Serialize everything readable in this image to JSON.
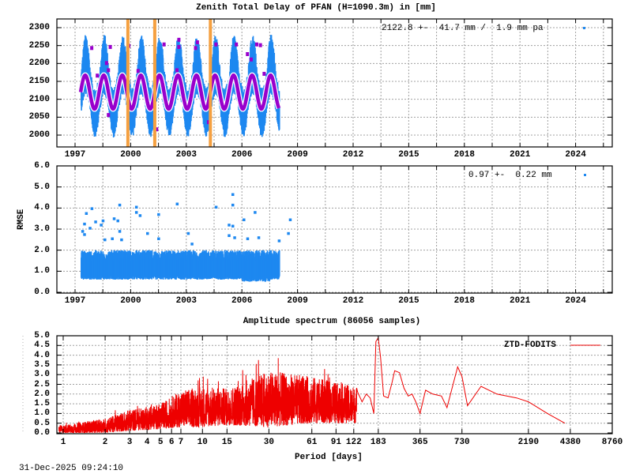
{
  "page": {
    "timestamp": "31-Dec-2025 09:24:10"
  },
  "colors": {
    "ztd_points": "#1e88f0",
    "ztd_model": "#9900cc",
    "ztd_outliers": "#9900cc",
    "discontinuity": "#f5a040",
    "rmse_points": "#1e88f0",
    "spectrum_line": "#ee0000",
    "grid": "#a0a0a0",
    "frame": "#000000"
  },
  "chart_data": [
    {
      "id": "ztd",
      "type": "scatter",
      "title": "Zenith Total Delay of PFAN (H=1090.3m) in [mm]",
      "xlabel": "",
      "ylabel": "",
      "xlim": [
        1996.0,
        2026.0
      ],
      "ylim": [
        1975,
        2325
      ],
      "xticks": [
        "1997",
        "2000",
        "2003",
        "2006",
        "2009",
        "2012",
        "2015",
        "2018",
        "2021",
        "2024"
      ],
      "yticks": [
        "2000",
        "2050",
        "2100",
        "2150",
        "2200",
        "2250",
        "2300"
      ],
      "grid": true,
      "legend": {
        "text": "2122.8 +-  41.7 mm /  1.9 mm pa",
        "position": "top-right"
      },
      "data_range": [
        1997.3,
        2008.0
      ],
      "mean_mm": 2122.8,
      "std_mm": 41.7,
      "trend_mm_per_year": 1.9,
      "seasonal_model": {
        "center": 2120,
        "amplitude": 47,
        "period_years": 1.0
      },
      "envelope": {
        "upper_peak_approx": 2245,
        "lower_trough_approx": 2025
      },
      "discontinuities_year": [
        1999.85,
        2001.3,
        2004.3
      ],
      "outliers": [
        {
          "x": 1997.9,
          "y": 2242
        },
        {
          "x": 1998.9,
          "y": 2245
        },
        {
          "x": 1998.7,
          "y": 2200
        },
        {
          "x": 1998.8,
          "y": 2180
        },
        {
          "x": 1998.8,
          "y": 2055
        },
        {
          "x": 1998.2,
          "y": 2165
        },
        {
          "x": 1999.9,
          "y": 2248
        },
        {
          "x": 2000.4,
          "y": 2178
        },
        {
          "x": 2001.8,
          "y": 2252
        },
        {
          "x": 2002.5,
          "y": 2180
        },
        {
          "x": 2002.6,
          "y": 2265
        },
        {
          "x": 2002.6,
          "y": 2245
        },
        {
          "x": 2003.6,
          "y": 2258
        },
        {
          "x": 2003.5,
          "y": 2242
        },
        {
          "x": 2004.2,
          "y": 2035
        },
        {
          "x": 2004.6,
          "y": 2252
        },
        {
          "x": 2005.7,
          "y": 2252
        },
        {
          "x": 2006.8,
          "y": 2252
        },
        {
          "x": 2007.0,
          "y": 2250
        },
        {
          "x": 2006.3,
          "y": 2225
        },
        {
          "x": 2006.5,
          "y": 2210
        },
        {
          "x": 2007.2,
          "y": 2170
        },
        {
          "x": 2001.4,
          "y": 2015
        }
      ]
    },
    {
      "id": "rmse",
      "type": "scatter",
      "title": "",
      "xlabel": "",
      "ylabel": "RMSE",
      "xlim": [
        1996.0,
        2026.0
      ],
      "ylim": [
        0.0,
        6.0
      ],
      "xticks": [
        "1997",
        "2000",
        "2003",
        "2006",
        "2009",
        "2012",
        "2015",
        "2018",
        "2021",
        "2024"
      ],
      "yticks": [
        "0.0",
        "1.0",
        "2.0",
        "3.0",
        "4.0",
        "5.0",
        "6.0"
      ],
      "grid": true,
      "legend": {
        "text": "0.97 +-  0.22 mm",
        "position": "top-right"
      },
      "mean_mm": 0.97,
      "std_mm": 0.22,
      "band": {
        "low": 0.6,
        "high": 1.9
      },
      "outliers": [
        {
          "x": 1997.4,
          "y": 2.9
        },
        {
          "x": 1997.6,
          "y": 3.75
        },
        {
          "x": 1997.5,
          "y": 3.25
        },
        {
          "x": 1997.5,
          "y": 2.75
        },
        {
          "x": 1997.8,
          "y": 3.05
        },
        {
          "x": 1997.9,
          "y": 3.98
        },
        {
          "x": 1998.1,
          "y": 3.35
        },
        {
          "x": 1998.4,
          "y": 3.2
        },
        {
          "x": 1998.5,
          "y": 3.4
        },
        {
          "x": 1998.6,
          "y": 2.5
        },
        {
          "x": 1999.0,
          "y": 2.55
        },
        {
          "x": 1999.1,
          "y": 3.5
        },
        {
          "x": 1999.3,
          "y": 3.4
        },
        {
          "x": 1999.4,
          "y": 4.15
        },
        {
          "x": 1999.4,
          "y": 2.9
        },
        {
          "x": 1999.5,
          "y": 2.5
        },
        {
          "x": 2000.3,
          "y": 4.05
        },
        {
          "x": 2000.3,
          "y": 3.8
        },
        {
          "x": 2000.5,
          "y": 3.65
        },
        {
          "x": 2000.9,
          "y": 2.8
        },
        {
          "x": 2001.5,
          "y": 3.7
        },
        {
          "x": 2001.5,
          "y": 2.55
        },
        {
          "x": 2002.5,
          "y": 4.2
        },
        {
          "x": 2003.1,
          "y": 2.8
        },
        {
          "x": 2003.3,
          "y": 2.3
        },
        {
          "x": 2004.6,
          "y": 4.05
        },
        {
          "x": 2005.3,
          "y": 3.2
        },
        {
          "x": 2005.3,
          "y": 2.7
        },
        {
          "x": 2005.5,
          "y": 3.15
        },
        {
          "x": 2005.5,
          "y": 4.65
        },
        {
          "x": 2005.5,
          "y": 4.15
        },
        {
          "x": 2005.6,
          "y": 2.6
        },
        {
          "x": 2006.1,
          "y": 3.45
        },
        {
          "x": 2006.3,
          "y": 2.55
        },
        {
          "x": 2006.7,
          "y": 3.8
        },
        {
          "x": 2006.9,
          "y": 2.6
        },
        {
          "x": 2008.0,
          "y": 2.45
        },
        {
          "x": 2008.5,
          "y": 2.8
        },
        {
          "x": 2008.6,
          "y": 3.45
        }
      ]
    },
    {
      "id": "spectrum",
      "type": "line",
      "title": "Amplitude spectrum (86056 samples)",
      "xlabel": "Period [days]",
      "ylabel": "",
      "xscale": "log",
      "xlim": [
        0.9,
        8760
      ],
      "ylim": [
        0.0,
        5.0
      ],
      "xticks": [
        "1",
        "2",
        "3",
        "4",
        "5",
        "6",
        "7",
        "10",
        "15",
        "30",
        "61",
        "91",
        "122",
        "183",
        "365",
        "730",
        "2190",
        "4380",
        "8760"
      ],
      "xtick_values": [
        1,
        2,
        3,
        4,
        5,
        6,
        7,
        10,
        15,
        30,
        61,
        91,
        122,
        183,
        365,
        730,
        2190,
        4380,
        8760
      ],
      "yticks": [
        "0.0",
        "0.5",
        "1.0",
        "1.5",
        "2.0",
        "2.5",
        "3.0",
        "3.5",
        "4.0",
        "4.5",
        "5.0"
      ],
      "grid": true,
      "legend": {
        "text": "ZTD-FODITS",
        "position": "top-right"
      },
      "samples": 86056,
      "series": [
        {
          "name": "ZTD-FODITS",
          "envelope_by_period": [
            {
              "period": 1,
              "low": 0.0,
              "high": 0.4
            },
            {
              "period": 2,
              "low": 0.0,
              "high": 0.75
            },
            {
              "period": 3,
              "low": 0.1,
              "high": 1.2
            },
            {
              "period": 5,
              "low": 0.2,
              "high": 1.5
            },
            {
              "period": 7,
              "low": 0.3,
              "high": 2.2
            },
            {
              "period": 10,
              "low": 0.3,
              "high": 2.4
            },
            {
              "period": 15,
              "low": 0.4,
              "high": 2.3
            },
            {
              "period": 30,
              "low": 0.3,
              "high": 3.2
            },
            {
              "period": 61,
              "low": 0.5,
              "high": 2.9
            },
            {
              "period": 122,
              "low": 0.5,
              "high": 2.4
            }
          ],
          "points": [
            {
              "period": 130,
              "value": 2.1
            },
            {
              "period": 140,
              "value": 1.6
            },
            {
              "period": 150,
              "value": 2.0
            },
            {
              "period": 160,
              "value": 1.8
            },
            {
              "period": 170,
              "value": 1.0
            },
            {
              "period": 176,
              "value": 4.7
            },
            {
              "period": 183,
              "value": 4.9
            },
            {
              "period": 190,
              "value": 3.9
            },
            {
              "period": 200,
              "value": 1.9
            },
            {
              "period": 215,
              "value": 1.8
            },
            {
              "period": 230,
              "value": 2.6
            },
            {
              "period": 240,
              "value": 3.2
            },
            {
              "period": 260,
              "value": 3.1
            },
            {
              "period": 280,
              "value": 2.3
            },
            {
              "period": 300,
              "value": 1.9
            },
            {
              "period": 320,
              "value": 2.0
            },
            {
              "period": 340,
              "value": 1.6
            },
            {
              "period": 365,
              "value": 1.0
            },
            {
              "period": 400,
              "value": 2.2
            },
            {
              "period": 450,
              "value": 2.0
            },
            {
              "period": 520,
              "value": 1.9
            },
            {
              "period": 570,
              "value": 1.3
            },
            {
              "period": 680,
              "value": 3.4
            },
            {
              "period": 730,
              "value": 2.9
            },
            {
              "period": 800,
              "value": 1.4
            },
            {
              "period": 1000,
              "value": 2.4
            },
            {
              "period": 1300,
              "value": 2.0
            },
            {
              "period": 1800,
              "value": 1.8
            },
            {
              "period": 2190,
              "value": 1.6
            },
            {
              "period": 3000,
              "value": 1.0
            },
            {
              "period": 4000,
              "value": 0.5
            }
          ]
        }
      ]
    }
  ]
}
